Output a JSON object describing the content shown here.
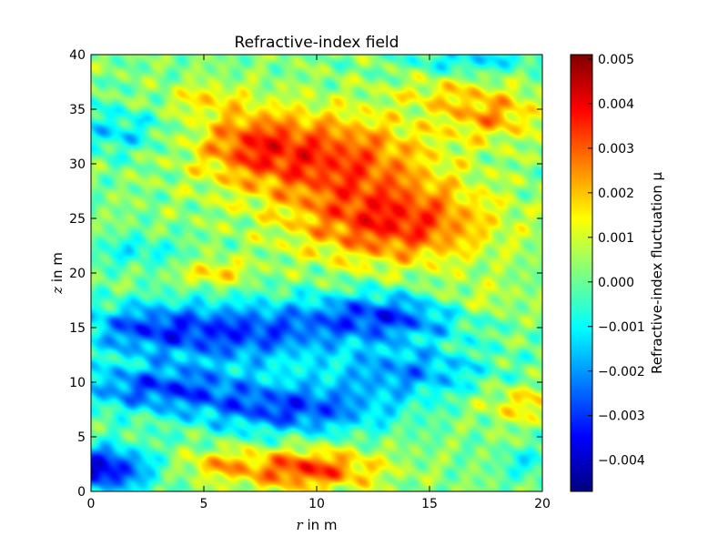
{
  "chart_data": {
    "type": "heatmap",
    "title": "Refractive-index field",
    "xlabel": "r in m",
    "ylabel": "z in m",
    "xlim": [
      0,
      20
    ],
    "ylim": [
      0,
      40
    ],
    "x_ticks": [
      0,
      5,
      10,
      15,
      20
    ],
    "y_ticks": [
      0,
      5,
      10,
      15,
      20,
      25,
      30,
      35,
      40
    ],
    "colorbar": {
      "label": "Refractive-index fluctuation μ",
      "vmin": -0.0047,
      "vmax": 0.0051,
      "ticks": [
        -0.004,
        -0.003,
        -0.002,
        -0.001,
        0.0,
        0.001,
        0.002,
        0.003,
        0.004,
        0.005
      ],
      "tick_labels": [
        "−0.004",
        "−0.003",
        "−0.002",
        "−0.001",
        "0.000",
        "0.001",
        "0.002",
        "0.003",
        "0.004",
        "0.005"
      ],
      "colormap": "jet"
    },
    "features": [
      {
        "r": 10.5,
        "z": 30.5,
        "sr": 3.2,
        "sz": 3.0,
        "value": 0.003
      },
      {
        "r": 13.5,
        "z": 24.5,
        "sr": 3.0,
        "sz": 2.6,
        "value": 0.0032
      },
      {
        "r": 7.0,
        "z": 32.0,
        "sr": 1.6,
        "sz": 2.2,
        "value": 0.0018
      },
      {
        "r": 17.8,
        "z": 34.5,
        "sr": 1.6,
        "sz": 1.6,
        "value": 0.002
      },
      {
        "r": 5.0,
        "z": 36.0,
        "sr": 1.2,
        "sz": 1.0,
        "value": 0.0012
      },
      {
        "r": 15.5,
        "z": 36.5,
        "sr": 1.5,
        "sz": 1.0,
        "value": 0.001
      },
      {
        "r": 5.5,
        "z": 20.0,
        "sr": 1.0,
        "sz": 0.8,
        "value": 0.0018
      },
      {
        "r": 9.5,
        "z": 2.0,
        "sr": 2.2,
        "sz": 1.3,
        "value": 0.0032
      },
      {
        "r": 5.5,
        "z": 2.5,
        "sr": 1.0,
        "sz": 0.9,
        "value": 0.0014
      },
      {
        "r": 19.0,
        "z": 8.0,
        "sr": 1.2,
        "sz": 1.2,
        "value": 0.0015
      },
      {
        "r": 17.0,
        "z": 17.5,
        "sr": 1.5,
        "sz": 1.2,
        "value": 0.001
      },
      {
        "r": 6.5,
        "z": 14.5,
        "sr": 3.0,
        "sz": 2.0,
        "value": -0.003
      },
      {
        "r": 13.0,
        "z": 16.0,
        "sr": 2.5,
        "sz": 1.6,
        "value": -0.003
      },
      {
        "r": 3.0,
        "z": 9.5,
        "sr": 2.8,
        "sz": 1.5,
        "value": -0.0028
      },
      {
        "r": 9.0,
        "z": 7.5,
        "sr": 3.0,
        "sz": 1.6,
        "value": -0.003
      },
      {
        "r": 14.0,
        "z": 11.0,
        "sr": 2.5,
        "sz": 1.6,
        "value": -0.0022
      },
      {
        "r": 0.5,
        "z": 2.0,
        "sr": 1.5,
        "sz": 1.5,
        "value": -0.004
      },
      {
        "r": 2.0,
        "z": 15.0,
        "sr": 2.0,
        "sz": 1.6,
        "value": -0.002
      },
      {
        "r": 1.0,
        "z": 33.0,
        "sr": 1.5,
        "sz": 1.5,
        "value": -0.0015
      },
      {
        "r": 2.0,
        "z": 22.0,
        "sr": 1.5,
        "sz": 1.0,
        "value": -0.0012
      },
      {
        "r": 17.0,
        "z": 39.5,
        "sr": 2.0,
        "sz": 0.8,
        "value": -0.0015
      },
      {
        "r": 19.5,
        "z": 2.5,
        "sr": 1.0,
        "sz": 1.0,
        "value": -0.0012
      }
    ]
  }
}
